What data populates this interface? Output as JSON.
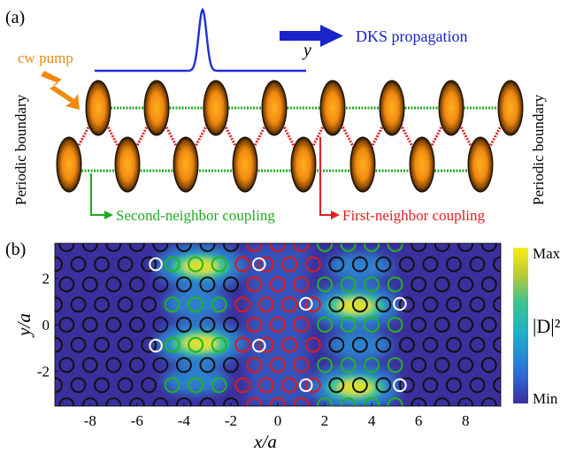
{
  "panel_a": {
    "label": "(a)",
    "pump_label": "cw pump",
    "propagation_label": "DKS propagation",
    "axis_symbol": "y",
    "left_boundary_label": "Periodic boundary",
    "right_boundary_label": "Periodic boundary",
    "second_neighbor_label": "Second-neighbor coupling",
    "first_neighbor_label": "First-neighbor coupling",
    "colors": {
      "pulse": "#1f2fd6",
      "pump": "#f08a10",
      "second_neighbor": "#22aa22",
      "first_neighbor": "#e02020",
      "resonator_core": "#ff9a10",
      "resonator_edge": "#1a0f00"
    }
  },
  "panel_b": {
    "label": "(b)",
    "xlabel": "x/a",
    "ylabel": "y/a",
    "x_ticks": [
      "-8",
      "-6",
      "-4",
      "-2",
      "0",
      "2",
      "4",
      "6",
      "8"
    ],
    "y_ticks": [
      "2",
      "0",
      "-2"
    ],
    "colorbar_title": "|D|²",
    "colorbar_max": "Max",
    "colorbar_min": "Min",
    "xlim": [
      -9.5,
      9.5
    ],
    "ylim": [
      -3.5,
      3.5
    ],
    "colors": {
      "background": "#3b2f9e",
      "holes_outer": "#111111",
      "holes_first": "#e01818",
      "holes_second": "#22b422",
      "holes_defect": "#ffffff"
    }
  }
}
